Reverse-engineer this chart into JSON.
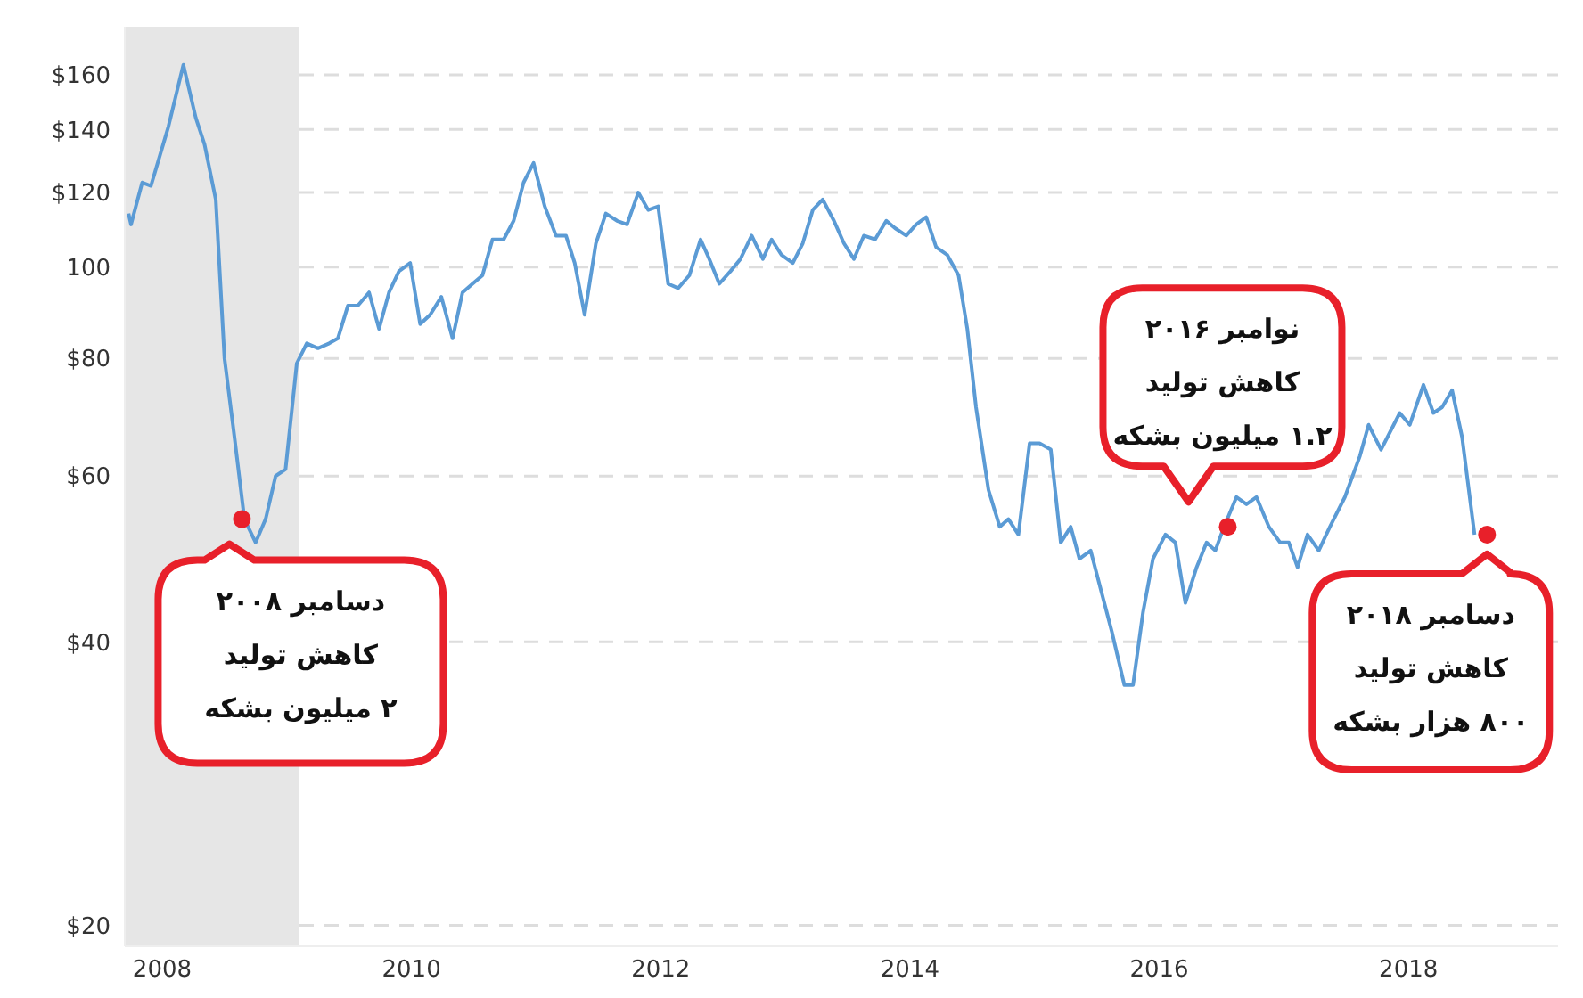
{
  "chart_data": {
    "type": "line",
    "x": [
      2007.73,
      2007.75,
      2007.84,
      2007.91,
      2008.05,
      2008.17,
      2008.27,
      2008.34,
      2008.43,
      2008.5,
      2008.58,
      2008.66,
      2008.75,
      2008.83,
      2008.91,
      2008.99,
      2009.08,
      2009.16,
      2009.25,
      2009.34,
      2009.41,
      2009.49,
      2009.57,
      2009.66,
      2009.74,
      2009.82,
      2009.9,
      2009.99,
      2010.07,
      2010.15,
      2010.24,
      2010.33,
      2010.41,
      2010.49,
      2010.57,
      2010.65,
      2010.74,
      2010.82,
      2010.9,
      2010.98,
      2011.07,
      2011.16,
      2011.24,
      2011.31,
      2011.39,
      2011.48,
      2011.56,
      2011.65,
      2011.73,
      2011.82,
      2011.9,
      2011.98,
      2012.06,
      2012.14,
      2012.23,
      2012.32,
      2012.39,
      2012.47,
      2012.56,
      2012.64,
      2012.73,
      2012.82,
      2012.89,
      2012.97,
      2013.06,
      2013.14,
      2013.22,
      2013.3,
      2013.39,
      2013.47,
      2013.55,
      2013.63,
      2013.72,
      2013.81,
      2013.88,
      2013.97,
      2014.05,
      2014.13,
      2014.21,
      2014.3,
      2014.39,
      2014.46,
      2014.53,
      2014.63,
      2014.72,
      2014.79,
      2014.87,
      2014.96,
      2015.04,
      2015.13,
      2015.21,
      2015.29,
      2015.36,
      2015.45,
      2015.54,
      2015.62,
      2015.72,
      2015.79,
      2015.87,
      2015.95,
      2016.05,
      2016.13,
      2016.21,
      2016.3,
      2016.38,
      2016.45,
      2016.52,
      2016.62,
      2016.7,
      2016.78,
      2016.88,
      2016.97,
      2017.04,
      2017.11,
      2017.19,
      2017.28,
      2017.37,
      2017.49,
      2017.61,
      2017.68,
      2017.78,
      2017.93,
      2018.01,
      2018.12,
      2018.2,
      2018.27,
      2018.35,
      2018.43,
      2018.53
    ],
    "series": [
      {
        "color": "#5b9bd5",
        "values": [
          114,
          111,
          123,
          122,
          141,
          164,
          144,
          135,
          118,
          80,
          66,
          54,
          51,
          54,
          60,
          61,
          79,
          83,
          82,
          83,
          84,
          91,
          91,
          94,
          86,
          94,
          99,
          101,
          87,
          89,
          93,
          84,
          94,
          96,
          98,
          107,
          107,
          112,
          123,
          129,
          116,
          108,
          108,
          101,
          89,
          106,
          114,
          112,
          111,
          120,
          115,
          116,
          96,
          95,
          98,
          107,
          102,
          96,
          99,
          102,
          108,
          102,
          107,
          103,
          101,
          106,
          115,
          118,
          112,
          106,
          102,
          108,
          107,
          112,
          110,
          108,
          111,
          113,
          105,
          103,
          98,
          86,
          71,
          58,
          53,
          54,
          52,
          65,
          65,
          64,
          51,
          53,
          49,
          50,
          45,
          41,
          36,
          36,
          43,
          49,
          52,
          51,
          44,
          48,
          51,
          50,
          53,
          57,
          56,
          57,
          53,
          51,
          51,
          48,
          52,
          50,
          53,
          57,
          63,
          68,
          64,
          70,
          68,
          75,
          70,
          71,
          74,
          66,
          52
        ]
      },
      {
        "type": "scatter",
        "marker": "circle",
        "color": "#e8202a",
        "x": [
          2008.64,
          2016.55,
          2018.63
        ],
        "values": [
          54,
          53,
          52
        ]
      }
    ],
    "marker": "none",
    "line_style": "solid",
    "log": "y",
    "grid": "y",
    "legend": false,
    "xlim": [
      2007.7,
      2019.2
    ],
    "xticks": [
      2008,
      2010,
      2012,
      2014,
      2016,
      2018
    ],
    "ylim": [
      19,
      180
    ],
    "yticks": [
      {
        "value": 20,
        "label": "$20"
      },
      {
        "value": 40,
        "label": "$40"
      },
      {
        "value": 60,
        "label": "$60"
      },
      {
        "value": 80,
        "label": "$80"
      },
      100,
      {
        "value": 120,
        "label": "$120"
      },
      {
        "value": 140,
        "label": "$140"
      },
      {
        "value": 160,
        "label": "$160"
      }
    ],
    "bands": [
      {
        "axis": "x",
        "from": 2007.7,
        "to": 2009.1,
        "color": "#e6e6e6"
      }
    ],
    "annotations": [
      "دسامبر ۲۰۰۸\nکاهش تولید\n۲ میلیون بشکه",
      "نوامبر ۲۰۱۶\nکاهش تولید\n۱.۲ میلیون بشکه",
      "دسامبر ۲۰۱۸\nکاهش تولید\n۸۰۰ هزار بشکه"
    ]
  }
}
